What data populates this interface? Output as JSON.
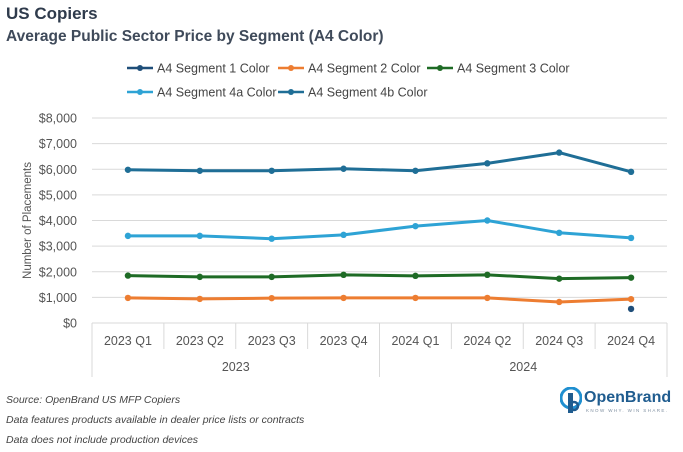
{
  "title": "US Copiers",
  "subtitle": "Average Public Sector Price by Segment (A4 Color)",
  "footnotes": [
    "Source: OpenBrand US MFP Copiers",
    "Data features products available in dealer price lists or contracts",
    "Data does not include production devices"
  ],
  "logo": {
    "name": "OpenBrand",
    "tagline": "KNOW WHY. WIN SHARE."
  },
  "chart_data": {
    "type": "line",
    "ylabel": "Number of Placements",
    "ylim": [
      0,
      8000
    ],
    "yticks": [
      "$0",
      "$1,000",
      "$2,000",
      "$3,000",
      "$4,000",
      "$5,000",
      "$6,000",
      "$7,000",
      "$8,000"
    ],
    "categories": [
      "2023 Q1",
      "2023 Q2",
      "2023 Q3",
      "2023 Q4",
      "2024 Q1",
      "2024 Q2",
      "2024 Q3",
      "2024 Q4"
    ],
    "groups": [
      {
        "label": "2023",
        "span": 4
      },
      {
        "label": "2024",
        "span": 4
      }
    ],
    "legend_position": "top",
    "series": [
      {
        "name": "A4 Segment 1 Color",
        "color": "#1f4e79",
        "values": [
          null,
          null,
          null,
          null,
          null,
          null,
          null,
          550
        ]
      },
      {
        "name": "A4 Segment 2 Color",
        "color": "#ed7d31",
        "values": [
          980,
          940,
          970,
          980,
          980,
          980,
          820,
          930
        ]
      },
      {
        "name": "A4 Segment 3 Color",
        "color": "#1e6b25",
        "values": [
          1850,
          1800,
          1800,
          1880,
          1840,
          1880,
          1730,
          1770
        ]
      },
      {
        "name": "A4 Segment 4a Color",
        "color": "#2ea3d5",
        "values": [
          3400,
          3400,
          3290,
          3440,
          3780,
          4000,
          3520,
          3320
        ]
      },
      {
        "name": "A4 Segment 4b Color",
        "color": "#1f6e96",
        "values": [
          5980,
          5940,
          5940,
          6020,
          5940,
          6230,
          6650,
          5900
        ]
      }
    ]
  }
}
